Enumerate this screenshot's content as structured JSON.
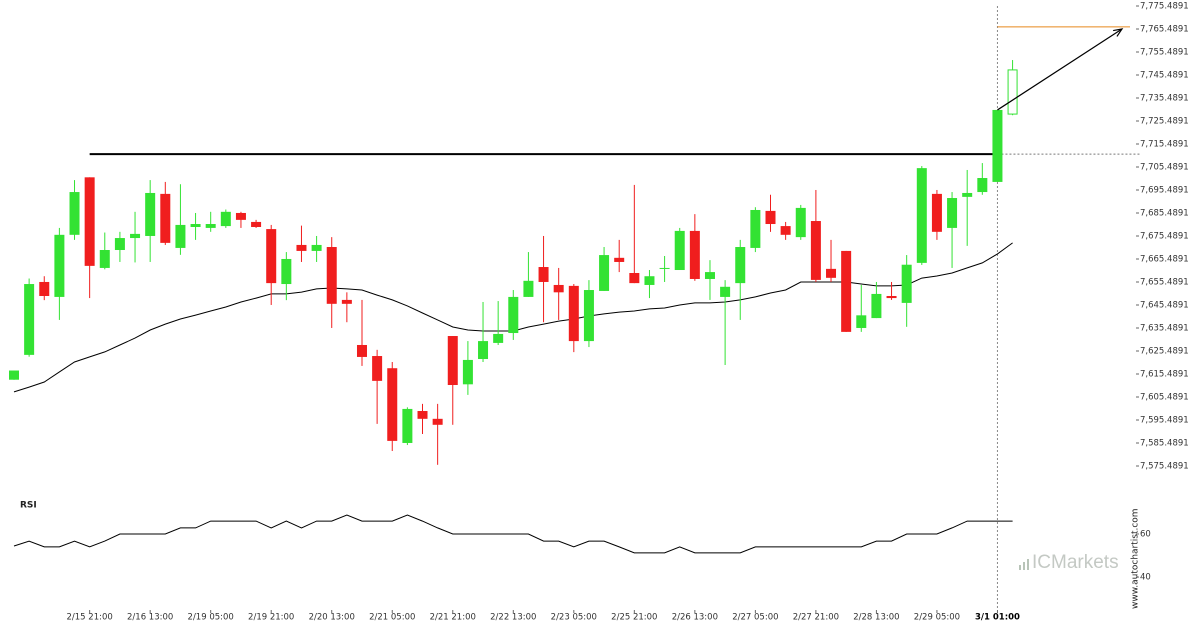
{
  "chart_data": {
    "type": "candlestick",
    "categories": [
      null,
      null,
      null,
      null,
      null,
      "2/15 21:00",
      null,
      null,
      null,
      "2/16 13:00",
      null,
      null,
      null,
      "2/19 05:00",
      null,
      null,
      null,
      "2/19 21:00",
      null,
      null,
      null,
      "2/20 13:00",
      null,
      null,
      null,
      "2/21 05:00",
      null,
      null,
      null,
      "2/21 21:00",
      null,
      null,
      null,
      "2/22 13:00",
      null,
      null,
      null,
      "2/23 05:00",
      null,
      null,
      null,
      "2/25 21:00",
      null,
      null,
      null,
      "2/26 13:00",
      null,
      null,
      null,
      "2/27 05:00",
      null,
      null,
      null,
      "2/27 21:00",
      null,
      null,
      null,
      "2/28 13:00",
      null,
      null,
      null,
      "2/29 05:00",
      null,
      null,
      null,
      "3/1 01:00",
      null
    ],
    "open": [
      7613,
      7623.8,
      7655.5,
      7649,
      7676,
      7701,
      7661.6,
      7669.4,
      7674.6,
      7675.5,
      7693.8,
      7670.3,
      7679.4,
      7679,
      7679.8,
      7685.5,
      7681.6,
      7678.5,
      7654.6,
      7671.6,
      7669,
      7670.7,
      7647.7,
      7628.1,
      7623.3,
      7618,
      7585.5,
      7599.4,
      7596,
      7632,
      7611,
      7622,
      7629,
      7633.3,
      7649,
      7662,
      7654.2,
      7653.8,
      7629.8,
      7651.6,
      7666,
      7659.4,
      7654.2,
      7661.2,
      7660.7,
      7677.7,
      7656.8,
      7649,
      7655,
      7670.3,
      7686.4,
      7679.8,
      7675,
      7682,
      7661.2,
      7669,
      7635.5,
      7639.8,
      7649.4,
      7646.4,
      7663.8,
      7693.8,
      7679,
      7692.5,
      7694.6,
      7699,
      7728.5
    ],
    "high": [
      7617,
      7657,
      7658,
      7679,
      7699.8,
      7701,
      7677,
      7677.3,
      7686,
      7699.8,
      7699,
      7698,
      7685.5,
      7686,
      7687,
      7686,
      7682.5,
      7680.3,
      7668.5,
      7680,
      7675.5,
      7675,
      7651,
      7647.7,
      7626,
      7620.7,
      7601,
      7602.5,
      7602.5,
      7632,
      7629.8,
      7646.8,
      7647.2,
      7652,
      7668.5,
      7675.5,
      7661.6,
      7654.6,
      7656.3,
      7670.7,
      7673.8,
      7697.7,
      7660.7,
      7666.8,
      7679,
      7685,
      7665,
      7656.3,
      7673.8,
      7688,
      7693.4,
      7681.6,
      7689,
      7695.5,
      7673.8,
      7669,
      7654.2,
      7655.5,
      7655.5,
      7667.2,
      7705.9,
      7695.5,
      7694.6,
      7704.2,
      7707.2,
      7730.3,
      7752
    ],
    "low": [
      7613,
      7623,
      7647.6,
      7639,
      7673.8,
      7648.5,
      7661,
      7664.2,
      7664,
      7664.2,
      7671.6,
      7667.3,
      7673.8,
      7677.3,
      7679,
      7679,
      7679,
      7645.5,
      7647.6,
      7664.2,
      7664.2,
      7635.5,
      7638,
      7619,
      7593.8,
      7582,
      7584.6,
      7589.4,
      7576,
      7593.4,
      7606.4,
      7620.7,
      7628.1,
      7630.3,
      7649,
      7638,
      7639,
      7625,
      7627.2,
      7651.6,
      7659.8,
      7655,
      7648.5,
      7655.5,
      7660.7,
      7656,
      7647.7,
      7619.4,
      7639,
      7668.5,
      7677.3,
      7673.8,
      7673.8,
      7655.5,
      7655.5,
      7633.8,
      7633.8,
      7639.8,
      7647.7,
      7636,
      7662.9,
      7673.8,
      7661.6,
      7671.2,
      7693.4,
      7699,
      7728
    ],
    "close": [
      7617,
      7654.6,
      7649.4,
      7676,
      7694.6,
      7662.5,
      7669.4,
      7674.6,
      7676.4,
      7694.2,
      7672.5,
      7680.3,
      7680.7,
      7680.7,
      7686,
      7682.5,
      7679.4,
      7655,
      7665.5,
      7669,
      7671.6,
      7646,
      7646,
      7622.9,
      7612.5,
      7586.4,
      7600.3,
      7596,
      7593.4,
      7610.7,
      7621.6,
      7629.8,
      7632.9,
      7649,
      7656,
      7655.5,
      7651,
      7629.8,
      7652,
      7667.2,
      7664.2,
      7655,
      7658,
      7661.6,
      7677.7,
      7656.8,
      7659.8,
      7653.4,
      7670.7,
      7686.8,
      7680.7,
      7676,
      7687.7,
      7656.4,
      7657.3,
      7633.8,
      7641,
      7650.3,
      7648.5,
      7663,
      7705,
      7677.3,
      7692,
      7694.2,
      7700.7,
      7730.3,
      7747.7
    ],
    "color_up": "#33e233",
    "color_down": "#f01e1e",
    "moving_average": {
      "color": "#000000",
      "values": [
        7607.7,
        7609.8,
        7612.0,
        7616.4,
        7620.7,
        7622.9,
        7625.1,
        7628.1,
        7631.1,
        7634.6,
        7637.2,
        7639.4,
        7641.1,
        7642.9,
        7644.6,
        7646.8,
        7648.5,
        7650.3,
        7650.3,
        7651.1,
        7652.5,
        7652.9,
        7652.5,
        7652.0,
        7649.8,
        7647.7,
        7645.1,
        7642.0,
        7639.0,
        7635.9,
        7634.6,
        7634.2,
        7634.2,
        7634.2,
        7635.9,
        7637.2,
        7638.5,
        7639.4,
        7640.7,
        7641.6,
        7642.4,
        7642.9,
        7643.8,
        7644.2,
        7645.5,
        7646.4,
        7646.4,
        7646.8,
        7647.7,
        7649.0,
        7650.7,
        7652.0,
        7655.5,
        7655.5,
        7655.5,
        7655.5,
        7654.6,
        7653.8,
        7653.8,
        7654.2,
        7657.2,
        7658.1,
        7659.4,
        7661.6,
        7663.8,
        7667.7,
        7672.5
      ]
    },
    "resistance": {
      "value": 7711.1,
      "color": "#000000"
    },
    "target": {
      "value": 7766.4,
      "color": "#e8891c"
    },
    "arrow": {
      "from": 7730.3,
      "to": 7765.5,
      "color": "#000000"
    },
    "ylim": [
      7565.05,
      7778.1
    ],
    "yticks": [
      {
        "value": 7575.4891,
        "label": "7,575.4891"
      },
      {
        "value": 7585.4891,
        "label": "7,585.4891"
      },
      {
        "value": 7595.4891,
        "label": "7,595.4891"
      },
      {
        "value": 7605.4891,
        "label": "7,605.4891"
      },
      {
        "value": 7615.4891,
        "label": "7,615.4891"
      },
      {
        "value": 7625.4891,
        "label": "7,625.4891"
      },
      {
        "value": 7635.4891,
        "label": "7,635.4891"
      },
      {
        "value": 7645.4891,
        "label": "7,645.4891"
      },
      {
        "value": 7655.4891,
        "label": "7,655.4891"
      },
      {
        "value": 7665.4891,
        "label": "7,665.4891"
      },
      {
        "value": 7675.4891,
        "label": "7,675.4891"
      },
      {
        "value": 7685.4891,
        "label": "7,685.4891"
      },
      {
        "value": 7695.4891,
        "label": "7,695.4891"
      },
      {
        "value": 7705.4891,
        "label": "7,705.4891"
      },
      {
        "value": 7715.4891,
        "label": "7,715.4891"
      },
      {
        "value": 7725.4891,
        "label": "7,725.4891"
      },
      {
        "value": 7735.4891,
        "label": "7,735.4891"
      },
      {
        "value": 7745.4891,
        "label": "7,745.4891"
      },
      {
        "value": 7755.4891,
        "label": "7,755.4891"
      },
      {
        "value": 7765.4891,
        "label": "7,765.4891"
      },
      {
        "value": 7775.4891,
        "label": "7,775.4891"
      }
    ],
    "rsi": {
      "title": "RSI",
      "color": "#000000",
      "ylim": [
        24.7,
        78.1
      ],
      "yticks": [
        60,
        40
      ],
      "values": [
        54.4,
        56.7,
        54.0,
        54.0,
        56.7,
        54.0,
        56.7,
        60,
        60,
        60,
        60,
        62.8,
        62.8,
        66,
        66,
        66,
        66,
        62.8,
        66,
        62.8,
        66,
        66,
        68.8,
        66,
        66,
        66,
        68.8,
        66,
        62.8,
        60,
        60,
        60,
        60,
        60,
        60,
        56.7,
        56.7,
        54,
        56.7,
        56.7,
        54,
        51.2,
        51.2,
        51.2,
        54,
        51.2,
        51.2,
        51.2,
        51.2,
        54,
        54,
        54,
        54,
        54,
        54,
        54,
        54,
        56.7,
        56.7,
        60,
        60,
        60,
        62.8,
        66,
        66,
        66,
        66
      ]
    },
    "source": "www.autochartist.com",
    "watermark": "ICMarkets"
  }
}
